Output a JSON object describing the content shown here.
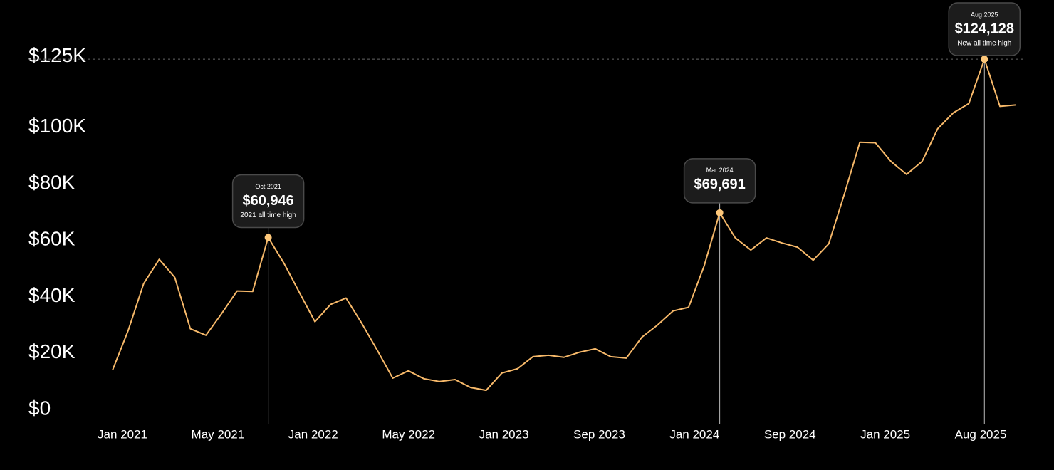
{
  "chart_data": {
    "type": "line",
    "values": [
      13900,
      27900,
      44600,
      53200,
      46800,
      28600,
      26300,
      33900,
      42000,
      41800,
      60946,
      51900,
      41500,
      31100,
      37200,
      39500,
      30600,
      21000,
      11100,
      13700,
      10900,
      9900,
      10600,
      7800,
      6800,
      12900,
      14400,
      18700,
      19200,
      18500,
      20300,
      21500,
      18700,
      18200,
      25600,
      29900,
      34900,
      36200,
      50900,
      69691,
      60800,
      56500,
      60800,
      59000,
      57500,
      52900,
      58700,
      76200,
      94700,
      94500,
      87900,
      83300,
      87900,
      99500,
      105100,
      108400,
      124128,
      107400,
      107900
    ],
    "color": "#f7b96a",
    "ylim": [
      0,
      135000
    ],
    "yticks": [
      {
        "value": 0,
        "label": "$0"
      },
      {
        "value": 20000,
        "label": "$20K"
      },
      {
        "value": 40000,
        "label": "$40K"
      },
      {
        "value": 60000,
        "label": "$60K"
      },
      {
        "value": 80000,
        "label": "$80K"
      },
      {
        "value": 100000,
        "label": "$100K"
      },
      {
        "value": 125000,
        "label": "$125K"
      }
    ],
    "x_labels": [
      "Jan 2021",
      "May 2021",
      "Jan 2022",
      "May 2022",
      "Jan 2023",
      "Sep 2023",
      "Jan 2024",
      "Sep 2024",
      "Jan 2025",
      "Aug 2025"
    ],
    "annotations": [
      {
        "date": "Oct 2021",
        "value": 60946,
        "label": "$60,946",
        "note": "2021 all time high"
      },
      {
        "date": "Mar 2024",
        "value": 69691,
        "label": "$69,691"
      },
      {
        "date": "Aug 2025",
        "value": 124128,
        "label": "$124,128",
        "note": "New all time high"
      }
    ]
  }
}
